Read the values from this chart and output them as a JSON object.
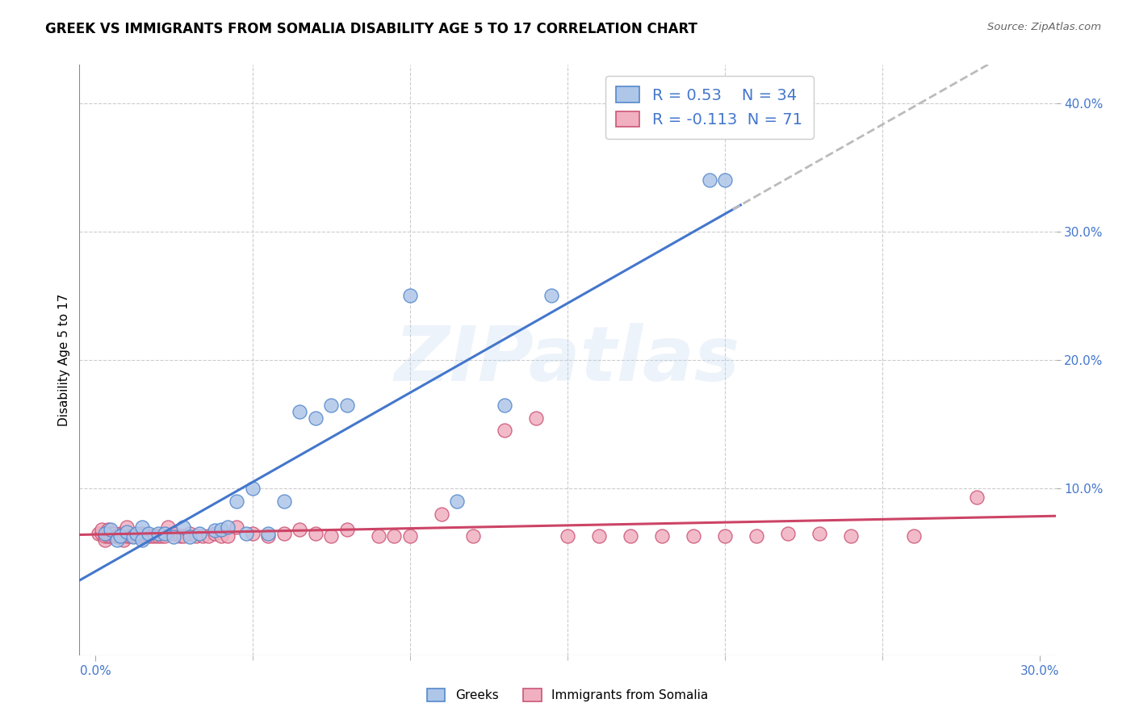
{
  "title": "GREEK VS IMMIGRANTS FROM SOMALIA DISABILITY AGE 5 TO 17 CORRELATION CHART",
  "source": "Source: ZipAtlas.com",
  "ylabel": "Disability Age 5 to 17",
  "xlim": [
    -0.005,
    0.305
  ],
  "ylim": [
    -0.03,
    0.43
  ],
  "yticks_right": [
    0.1,
    0.2,
    0.3,
    0.4
  ],
  "ytick_right_labels": [
    "10.0%",
    "20.0%",
    "30.0%",
    "40.0%"
  ],
  "xtick_positions": [
    0.0,
    0.3
  ],
  "xtick_labels": [
    "0.0%",
    "30.0%"
  ],
  "greek_R": 0.53,
  "greek_N": 34,
  "somalia_R": -0.113,
  "somalia_N": 71,
  "greek_color": "#aec6e8",
  "somalia_color": "#f0b0c0",
  "greek_edge_color": "#5588cc",
  "somalia_edge_color": "#cc5577",
  "greek_line_color": "#4477cc",
  "somalia_line_color": "#cc4466",
  "trendline_dash_color": "#bbbbbb",
  "watermark": "ZIPatlas",
  "greek_scatter_x": [
    0.003,
    0.005,
    0.007,
    0.008,
    0.01,
    0.012,
    0.013,
    0.015,
    0.015,
    0.017,
    0.02,
    0.022,
    0.025,
    0.028,
    0.03,
    0.033,
    0.038,
    0.04,
    0.042,
    0.045,
    0.048,
    0.05,
    0.055,
    0.06,
    0.065,
    0.07,
    0.075,
    0.08,
    0.1,
    0.115,
    0.13,
    0.145,
    0.195,
    0.2
  ],
  "greek_scatter_y": [
    0.065,
    0.068,
    0.06,
    0.063,
    0.066,
    0.062,
    0.065,
    0.07,
    0.06,
    0.065,
    0.065,
    0.065,
    0.062,
    0.07,
    0.062,
    0.065,
    0.067,
    0.068,
    0.07,
    0.09,
    0.065,
    0.1,
    0.065,
    0.09,
    0.16,
    0.155,
    0.165,
    0.165,
    0.25,
    0.09,
    0.165,
    0.25,
    0.34,
    0.34
  ],
  "somalia_scatter_x": [
    0.001,
    0.002,
    0.002,
    0.003,
    0.003,
    0.004,
    0.004,
    0.005,
    0.005,
    0.006,
    0.006,
    0.007,
    0.007,
    0.008,
    0.008,
    0.009,
    0.009,
    0.01,
    0.01,
    0.01,
    0.011,
    0.012,
    0.012,
    0.013,
    0.014,
    0.015,
    0.016,
    0.017,
    0.018,
    0.019,
    0.02,
    0.021,
    0.022,
    0.023,
    0.025,
    0.027,
    0.028,
    0.03,
    0.032,
    0.034,
    0.036,
    0.038,
    0.04,
    0.042,
    0.045,
    0.05,
    0.055,
    0.06,
    0.065,
    0.07,
    0.075,
    0.08,
    0.09,
    0.095,
    0.1,
    0.11,
    0.12,
    0.13,
    0.14,
    0.15,
    0.16,
    0.17,
    0.18,
    0.19,
    0.2,
    0.21,
    0.22,
    0.23,
    0.24,
    0.26,
    0.28
  ],
  "somalia_scatter_y": [
    0.065,
    0.065,
    0.068,
    0.06,
    0.063,
    0.063,
    0.068,
    0.065,
    0.063,
    0.063,
    0.065,
    0.063,
    0.063,
    0.063,
    0.065,
    0.06,
    0.065,
    0.063,
    0.065,
    0.07,
    0.063,
    0.063,
    0.063,
    0.063,
    0.063,
    0.065,
    0.063,
    0.063,
    0.063,
    0.063,
    0.063,
    0.063,
    0.063,
    0.07,
    0.065,
    0.063,
    0.063,
    0.065,
    0.063,
    0.063,
    0.063,
    0.065,
    0.063,
    0.063,
    0.07,
    0.065,
    0.063,
    0.065,
    0.068,
    0.065,
    0.063,
    0.068,
    0.063,
    0.063,
    0.063,
    0.08,
    0.063,
    0.145,
    0.155,
    0.063,
    0.063,
    0.063,
    0.063,
    0.063,
    0.063,
    0.063,
    0.065,
    0.065,
    0.063,
    0.063,
    0.093
  ],
  "background_color": "#ffffff",
  "grid_color": "#cccccc",
  "title_fontsize": 12,
  "axis_label_fontsize": 11,
  "tick_fontsize": 11,
  "legend_fontsize": 14
}
